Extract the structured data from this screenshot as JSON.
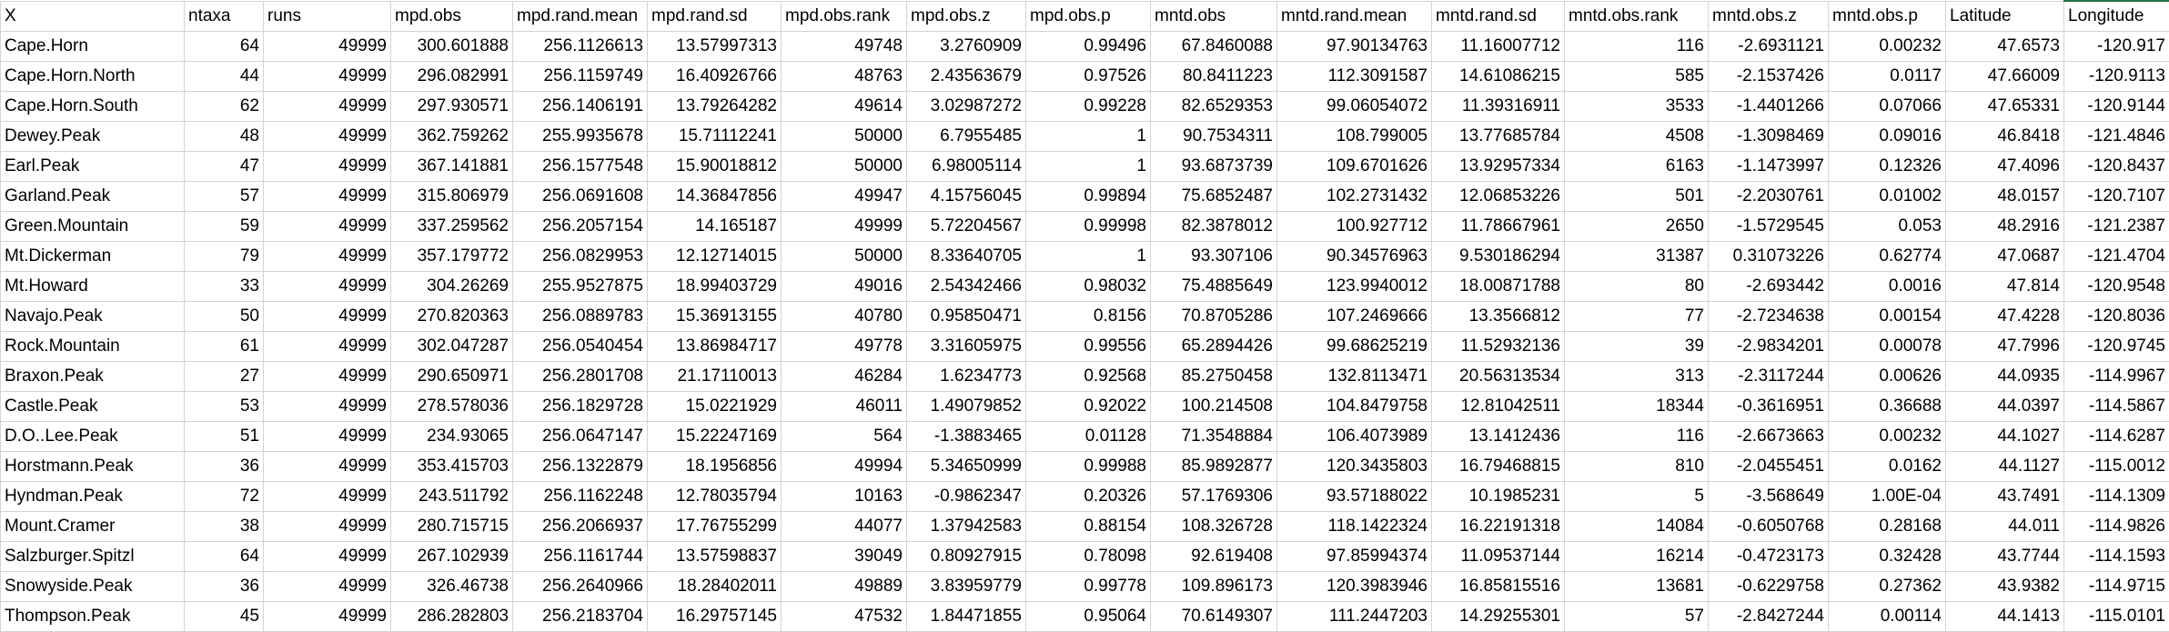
{
  "sheet": {
    "columns": [
      "X",
      "ntaxa",
      "runs",
      "mpd.obs",
      "mpd.rand.mean",
      "mpd.rand.sd",
      "mpd.obs.rank",
      "mpd.obs.z",
      "mpd.obs.p",
      "mntd.obs",
      "mntd.rand.mean",
      "mntd.rand.sd",
      "mntd.obs.rank",
      "mntd.obs.z",
      "mntd.obs.p",
      "Latitude",
      "Longitude"
    ],
    "rows": [
      [
        "Cape.Horn",
        "64",
        "49999",
        "300.601888",
        "256.1126613",
        "13.57997313",
        "49748",
        "3.2760909",
        "0.99496",
        "67.8460088",
        "97.90134763",
        "11.16007712",
        "116",
        "-2.6931121",
        "0.00232",
        "47.6573",
        "-120.917"
      ],
      [
        "Cape.Horn.North",
        "44",
        "49999",
        "296.082991",
        "256.1159749",
        "16.40926766",
        "48763",
        "2.43563679",
        "0.97526",
        "80.8411223",
        "112.3091587",
        "14.61086215",
        "585",
        "-2.1537426",
        "0.0117",
        "47.66009",
        "-120.9113"
      ],
      [
        "Cape.Horn.South",
        "62",
        "49999",
        "297.930571",
        "256.1406191",
        "13.79264282",
        "49614",
        "3.02987272",
        "0.99228",
        "82.6529353",
        "99.06054072",
        "11.39316911",
        "3533",
        "-1.4401266",
        "0.07066",
        "47.65331",
        "-120.9144"
      ],
      [
        "Dewey.Peak",
        "48",
        "49999",
        "362.759262",
        "255.9935678",
        "15.71112241",
        "50000",
        "6.7955485",
        "1",
        "90.7534311",
        "108.799005",
        "13.77685784",
        "4508",
        "-1.3098469",
        "0.09016",
        "46.8418",
        "-121.4846"
      ],
      [
        "Earl.Peak",
        "47",
        "49999",
        "367.141881",
        "256.1577548",
        "15.90018812",
        "50000",
        "6.98005114",
        "1",
        "93.6873739",
        "109.6701626",
        "13.92957334",
        "6163",
        "-1.1473997",
        "0.12326",
        "47.4096",
        "-120.8437"
      ],
      [
        "Garland.Peak",
        "57",
        "49999",
        "315.806979",
        "256.0691608",
        "14.36847856",
        "49947",
        "4.15756045",
        "0.99894",
        "75.6852487",
        "102.2731432",
        "12.06853226",
        "501",
        "-2.2030761",
        "0.01002",
        "48.0157",
        "-120.7107"
      ],
      [
        "Green.Mountain",
        "59",
        "49999",
        "337.259562",
        "256.2057154",
        "14.165187",
        "49999",
        "5.72204567",
        "0.99998",
        "82.3878012",
        "100.927712",
        "11.78667961",
        "2650",
        "-1.5729545",
        "0.053",
        "48.2916",
        "-121.2387"
      ],
      [
        "Mt.Dickerman",
        "79",
        "49999",
        "357.179772",
        "256.0829953",
        "12.12714015",
        "50000",
        "8.33640705",
        "1",
        "93.307106",
        "90.34576963",
        "9.530186294",
        "31387",
        "0.31073226",
        "0.62774",
        "47.0687",
        "-121.4704"
      ],
      [
        "Mt.Howard",
        "33",
        "49999",
        "304.26269",
        "255.9527875",
        "18.99403729",
        "49016",
        "2.54342466",
        "0.98032",
        "75.4885649",
        "123.9940012",
        "18.00871788",
        "80",
        "-2.693442",
        "0.0016",
        "47.814",
        "-120.9548"
      ],
      [
        "Navajo.Peak",
        "50",
        "49999",
        "270.820363",
        "256.0889783",
        "15.36913155",
        "40780",
        "0.95850471",
        "0.8156",
        "70.8705286",
        "107.2469666",
        "13.3566812",
        "77",
        "-2.7234638",
        "0.00154",
        "47.4228",
        "-120.8036"
      ],
      [
        "Rock.Mountain",
        "61",
        "49999",
        "302.047287",
        "256.0540454",
        "13.86984717",
        "49778",
        "3.31605975",
        "0.99556",
        "65.2894426",
        "99.68625219",
        "11.52932136",
        "39",
        "-2.9834201",
        "0.00078",
        "47.7996",
        "-120.9745"
      ],
      [
        "Braxon.Peak",
        "27",
        "49999",
        "290.650971",
        "256.2801708",
        "21.17110013",
        "46284",
        "1.6234773",
        "0.92568",
        "85.2750458",
        "132.8113471",
        "20.56313534",
        "313",
        "-2.3117244",
        "0.00626",
        "44.0935",
        "-114.9967"
      ],
      [
        "Castle.Peak",
        "53",
        "49999",
        "278.578036",
        "256.1829728",
        "15.0221929",
        "46011",
        "1.49079852",
        "0.92022",
        "100.214508",
        "104.8479758",
        "12.81042511",
        "18344",
        "-0.3616951",
        "0.36688",
        "44.0397",
        "-114.5867"
      ],
      [
        "D.O..Lee.Peak",
        "51",
        "49999",
        "234.93065",
        "256.0647147",
        "15.22247169",
        "564",
        "-1.3883465",
        "0.01128",
        "71.3548884",
        "106.4073989",
        "13.1412436",
        "116",
        "-2.6673663",
        "0.00232",
        "44.1027",
        "-114.6287"
      ],
      [
        "Horstmann.Peak",
        "36",
        "49999",
        "353.415703",
        "256.1322879",
        "18.1956856",
        "49994",
        "5.34650999",
        "0.99988",
        "85.9892877",
        "120.3435803",
        "16.79468815",
        "810",
        "-2.0455451",
        "0.0162",
        "44.1127",
        "-115.0012"
      ],
      [
        "Hyndman.Peak",
        "72",
        "49999",
        "243.511792",
        "256.1162248",
        "12.78035794",
        "10163",
        "-0.9862347",
        "0.20326",
        "57.1769306",
        "93.57188022",
        "10.1985231",
        "5",
        "-3.568649",
        "1.00E-04",
        "43.7491",
        "-114.1309"
      ],
      [
        "Mount.Cramer",
        "38",
        "49999",
        "280.715715",
        "256.2066937",
        "17.76755299",
        "44077",
        "1.37942583",
        "0.88154",
        "108.326728",
        "118.1422324",
        "16.22191318",
        "14084",
        "-0.6050768",
        "0.28168",
        "44.011",
        "-114.9826"
      ],
      [
        "Salzburger.Spitzl",
        "64",
        "49999",
        "267.102939",
        "256.1161744",
        "13.57598837",
        "39049",
        "0.80927915",
        "0.78098",
        "92.619408",
        "97.85994374",
        "11.09537144",
        "16214",
        "-0.4723173",
        "0.32428",
        "43.7744",
        "-114.1593"
      ],
      [
        "Snowyside.Peak",
        "36",
        "49999",
        "326.46738",
        "256.2640966",
        "18.28402011",
        "49889",
        "3.83959779",
        "0.99778",
        "109.896173",
        "120.3983946",
        "16.85815516",
        "13681",
        "-0.6229758",
        "0.27362",
        "43.9382",
        "-114.9715"
      ],
      [
        "Thompson.Peak",
        "45",
        "49999",
        "286.282803",
        "256.2183704",
        "16.29757145",
        "47532",
        "1.84471855",
        "0.95064",
        "70.6149307",
        "111.2447203",
        "14.29255301",
        "57",
        "-2.8427244",
        "0.00114",
        "44.1413",
        "-115.0101"
      ]
    ]
  }
}
